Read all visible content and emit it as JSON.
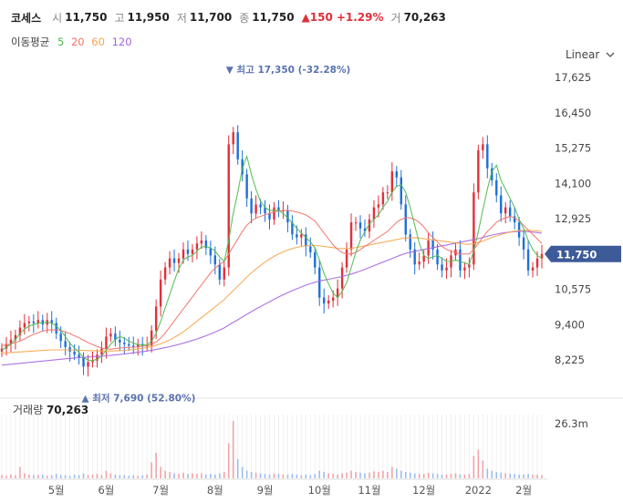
{
  "header": {
    "name": "코세스",
    "open_label": "시",
    "open": "11,750",
    "high_label": "고",
    "high": "11,950",
    "low_label": "저",
    "low": "11,700",
    "close_label": "종",
    "close": "11,750",
    "change": "▲150",
    "change_pct": "+1.29%",
    "volume_label": "거",
    "volume": "70,263"
  },
  "ma_legend": {
    "label": "이동평균",
    "items": [
      {
        "name": "5",
        "color": "#4cba4c"
      },
      {
        "name": "20",
        "color": "#f0736b"
      },
      {
        "name": "60",
        "color": "#f6a54a"
      },
      {
        "name": "120",
        "color": "#a463e0"
      }
    ]
  },
  "scale_selector": {
    "label": "Linear",
    "icon": "chevron-down-icon"
  },
  "volume_panel": {
    "label": "거래량",
    "value": "70,263",
    "ytick": "26.3m"
  },
  "colors": {
    "up": "#e0303a",
    "down": "#1e6fd9",
    "current_tag": "#3d5a99",
    "annotation": "#5a73b0"
  },
  "chart_data": {
    "type": "line",
    "title": "",
    "yticks": [
      "17,625",
      "16,450",
      "15,275",
      "14,100",
      "12,925",
      "10,575",
      "9,400",
      "8,225"
    ],
    "ylim": [
      7300,
      17900
    ],
    "x_tick_labels": [
      "5월",
      "6월",
      "7월",
      "8월",
      "9월",
      "10월",
      "11월",
      "12월",
      "2022",
      "2월"
    ],
    "x_tick_index": [
      12,
      23,
      35,
      47,
      58,
      70,
      81,
      93,
      105,
      115
    ],
    "current_price": "11,750",
    "max_annotation": "▼ 최고 17,350 (-32.28%)",
    "min_annotation": "▲ 최저 7,690 (52.80%)",
    "max_point": {
      "index": 50,
      "value": 17350
    },
    "min_point": {
      "index": 18,
      "value": 7690
    },
    "close": [
      8600,
      8750,
      8900,
      9050,
      9300,
      9450,
      9500,
      9450,
      9550,
      9400,
      9550,
      9450,
      9100,
      8850,
      8650,
      8500,
      8400,
      8300,
      8000,
      8150,
      8200,
      8400,
      8600,
      9000,
      9100,
      8900,
      8800,
      8750,
      8700,
      8650,
      8750,
      8700,
      8700,
      9200,
      10000,
      10900,
      11300,
      11600,
      11450,
      11600,
      11900,
      11750,
      11900,
      12100,
      12200,
      11950,
      11700,
      11400,
      10900,
      11300,
      15400,
      15800,
      14900,
      14400,
      13600,
      13100,
      13400,
      13300,
      13100,
      12900,
      13300,
      13200,
      13200,
      12800,
      12400,
      12300,
      12400,
      12000,
      11800,
      11300,
      10300,
      10100,
      10200,
      10300,
      10600,
      11300,
      11900,
      12800,
      12800,
      12600,
      12500,
      12900,
      13300,
      13400,
      13800,
      13800,
      14500,
      14300,
      13400,
      12400,
      11900,
      11400,
      11500,
      11700,
      12200,
      11900,
      11400,
      11200,
      11300,
      11700,
      11900,
      11200,
      11300,
      11400,
      13800,
      15200,
      15400,
      14600,
      14200,
      13700,
      13100,
      13300,
      13000,
      12800,
      12300,
      11900,
      11200,
      11300,
      11600,
      11750
    ],
    "ma5": [
      8550,
      8650,
      8750,
      8900,
      9100,
      9250,
      9350,
      9400,
      9450,
      9450,
      9480,
      9450,
      9350,
      9200,
      9000,
      8780,
      8620,
      8480,
      8300,
      8220,
      8200,
      8250,
      8350,
      8550,
      8750,
      8900,
      9000,
      8950,
      8850,
      8780,
      8730,
      8720,
      8720,
      8850,
      9100,
      9500,
      9950,
      10400,
      10850,
      11250,
      11550,
      11650,
      11700,
      11850,
      11980,
      12000,
      11950,
      11850,
      11650,
      11500,
      12200,
      13100,
      13800,
      14600,
      15000,
      14400,
      13900,
      13500,
      13300,
      13200,
      13200,
      13200,
      13100,
      12950,
      12780,
      12600,
      12450,
      12300,
      12150,
      11950,
      11550,
      11100,
      10750,
      10450,
      10300,
      10500,
      10800,
      11300,
      11800,
      12200,
      12500,
      12750,
      12900,
      13050,
      13300,
      13500,
      13800,
      14000,
      14050,
      13800,
      13300,
      12700,
      12100,
      11700,
      11600,
      11650,
      11700,
      11600,
      11500,
      11500,
      11550,
      11500,
      11450,
      11400,
      11850,
      12500,
      13200,
      13900,
      14500,
      14700,
      14200,
      13900,
      13600,
      13300,
      12900,
      12600,
      12200,
      11900,
      11700,
      11600
    ],
    "ma20": [
      8700,
      8720,
      8760,
      8800,
      8850,
      8920,
      9000,
      9070,
      9130,
      9180,
      9220,
      9230,
      9220,
      9200,
      9160,
      9100,
      9030,
      8960,
      8880,
      8800,
      8730,
      8670,
      8620,
      8590,
      8580,
      8600,
      8620,
      8630,
      8640,
      8650,
      8660,
      8680,
      8700,
      8740,
      8820,
      8950,
      9120,
      9320,
      9520,
      9720,
      9920,
      10120,
      10320,
      10520,
      10720,
      10920,
      11120,
      11280,
      11400,
      11500,
      11750,
      12000,
      12250,
      12500,
      12700,
      12850,
      12950,
      13000,
      13050,
      13100,
      13150,
      13180,
      13200,
      13200,
      13180,
      13150,
      13100,
      13050,
      12950,
      12850,
      12650,
      12450,
      12250,
      12050,
      11900,
      11800,
      11750,
      11750,
      11800,
      11900,
      12000,
      12100,
      12200,
      12300,
      12400,
      12500,
      12650,
      12800,
      12900,
      12950,
      12950,
      12900,
      12800,
      12650,
      12450,
      12300,
      12150,
      12000,
      11900,
      11850,
      11800,
      11750,
      11750,
      11750,
      11900,
      12100,
      12300,
      12500,
      12650,
      12800,
      12900,
      12950,
      13000,
      12950,
      12850,
      12700,
      12550,
      12400,
      12250,
      12100
    ],
    "ma60": [
      8450,
      8460,
      8470,
      8480,
      8490,
      8500,
      8510,
      8520,
      8530,
      8540,
      8550,
      8560,
      8560,
      8560,
      8560,
      8555,
      8550,
      8545,
      8540,
      8535,
      8530,
      8525,
      8520,
      8520,
      8520,
      8525,
      8530,
      8540,
      8555,
      8570,
      8590,
      8610,
      8640,
      8670,
      8710,
      8760,
      8820,
      8890,
      8970,
      9060,
      9160,
      9270,
      9390,
      9510,
      9630,
      9750,
      9870,
      9990,
      10110,
      10230,
      10380,
      10530,
      10680,
      10830,
      10980,
      11120,
      11250,
      11370,
      11480,
      11580,
      11670,
      11750,
      11820,
      11880,
      11930,
      11970,
      12000,
      12020,
      12030,
      12030,
      12020,
      12000,
      11980,
      11960,
      11940,
      11930,
      11930,
      11940,
      11960,
      11990,
      12020,
      12050,
      12080,
      12110,
      12140,
      12170,
      12200,
      12230,
      12260,
      12280,
      12290,
      12290,
      12280,
      12260,
      12240,
      12220,
      12200,
      12180,
      12160,
      12140,
      12120,
      12100,
      12080,
      12070,
      12090,
      12130,
      12180,
      12240,
      12300,
      12350,
      12400,
      12440,
      12480,
      12510,
      12530,
      12540,
      12540,
      12530,
      12520,
      12500
    ],
    "ma120": [
      8050,
      8065,
      8080,
      8095,
      8110,
      8125,
      8140,
      8155,
      8170,
      8185,
      8200,
      8215,
      8230,
      8245,
      8260,
      8275,
      8290,
      8300,
      8310,
      8320,
      8330,
      8340,
      8350,
      8360,
      8375,
      8390,
      8405,
      8420,
      8440,
      8460,
      8480,
      8500,
      8520,
      8545,
      8570,
      8600,
      8630,
      8665,
      8700,
      8740,
      8780,
      8825,
      8870,
      8920,
      8975,
      9030,
      9090,
      9150,
      9220,
      9290,
      9380,
      9470,
      9560,
      9650,
      9740,
      9830,
      9920,
      10000,
      10080,
      10160,
      10240,
      10320,
      10390,
      10460,
      10530,
      10590,
      10650,
      10710,
      10760,
      10810,
      10850,
      10880,
      10910,
      10940,
      10970,
      11000,
      11040,
      11080,
      11130,
      11180,
      11240,
      11300,
      11360,
      11420,
      11480,
      11540,
      11600,
      11660,
      11720,
      11770,
      11810,
      11840,
      11870,
      11900,
      11930,
      11960,
      11990,
      12020,
      12050,
      12080,
      12110,
      12140,
      12170,
      12200,
      12230,
      12260,
      12300,
      12340,
      12380,
      12410,
      12440,
      12460,
      12480,
      12490,
      12500,
      12500,
      12490,
      12480,
      12460,
      12440
    ],
    "volume_rel": [
      0.05,
      0.04,
      0.06,
      0.05,
      0.18,
      0.08,
      0.06,
      0.05,
      0.05,
      0.06,
      0.04,
      0.05,
      0.07,
      0.05,
      0.05,
      0.04,
      0.06,
      0.05,
      0.08,
      0.05,
      0.06,
      0.07,
      0.05,
      0.12,
      0.08,
      0.06,
      0.05,
      0.05,
      0.04,
      0.05,
      0.04,
      0.05,
      0.06,
      0.25,
      0.4,
      0.18,
      0.12,
      0.1,
      0.08,
      0.07,
      0.09,
      0.07,
      0.08,
      0.07,
      0.08,
      0.06,
      0.07,
      0.06,
      0.08,
      0.1,
      0.55,
      0.9,
      0.3,
      0.18,
      0.12,
      0.1,
      0.09,
      0.08,
      0.07,
      0.06,
      0.08,
      0.07,
      0.06,
      0.06,
      0.07,
      0.06,
      0.05,
      0.06,
      0.05,
      0.07,
      0.12,
      0.1,
      0.08,
      0.07,
      0.06,
      0.08,
      0.09,
      0.12,
      0.1,
      0.09,
      0.08,
      0.09,
      0.11,
      0.1,
      0.12,
      0.1,
      0.18,
      0.15,
      0.12,
      0.1,
      0.09,
      0.08,
      0.07,
      0.07,
      0.09,
      0.08,
      0.07,
      0.06,
      0.06,
      0.07,
      0.08,
      0.06,
      0.06,
      0.07,
      0.35,
      0.45,
      0.28,
      0.15,
      0.12,
      0.1,
      0.09,
      0.08,
      0.07,
      0.07,
      0.06,
      0.06,
      0.07,
      0.06,
      0.06,
      0.05
    ]
  }
}
